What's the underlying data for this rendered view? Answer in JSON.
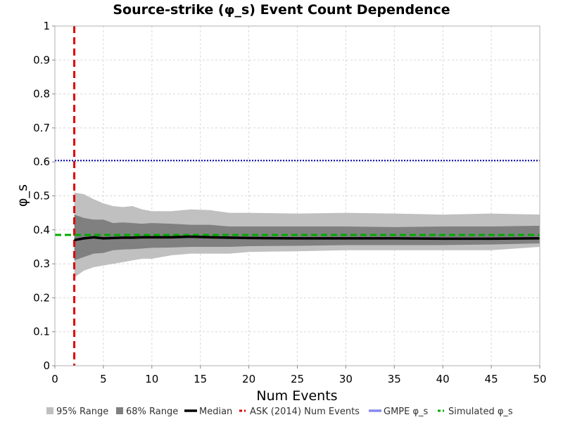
{
  "chart_data": {
    "type": "line",
    "title": "Source-strike (φ_s) Event Count Dependence",
    "xlabel": "Num Events",
    "ylabel": "φ_s",
    "xlim": [
      0,
      50
    ],
    "ylim": [
      0,
      1
    ],
    "x_ticks": [
      0,
      5,
      10,
      15,
      20,
      25,
      30,
      35,
      40,
      45,
      50
    ],
    "y_ticks": [
      0,
      0.1,
      0.2,
      0.3,
      0.4,
      0.5,
      0.6,
      0.7,
      0.8,
      0.9,
      1
    ],
    "grid": true,
    "legend_position": "bottom",
    "x": [
      2,
      3,
      4,
      5,
      6,
      7,
      8,
      9,
      10,
      12,
      14,
      16,
      18,
      20,
      25,
      30,
      35,
      40,
      45,
      50
    ],
    "series": [
      {
        "name": "95% Range",
        "kind": "band",
        "color": "#c0c0c0",
        "lower": [
          0.26,
          0.28,
          0.29,
          0.295,
          0.3,
          0.305,
          0.31,
          0.315,
          0.315,
          0.325,
          0.33,
          0.33,
          0.33,
          0.335,
          0.337,
          0.34,
          0.34,
          0.34,
          0.34,
          0.35
        ],
        "upper": [
          0.51,
          0.505,
          0.49,
          0.478,
          0.47,
          0.467,
          0.47,
          0.46,
          0.455,
          0.455,
          0.46,
          0.458,
          0.45,
          0.45,
          0.448,
          0.45,
          0.448,
          0.445,
          0.448,
          0.445
        ]
      },
      {
        "name": "68% Range",
        "kind": "band",
        "color": "#808080",
        "lower": [
          0.31,
          0.32,
          0.33,
          0.332,
          0.34,
          0.342,
          0.343,
          0.345,
          0.347,
          0.348,
          0.35,
          0.35,
          0.35,
          0.352,
          0.353,
          0.355,
          0.355,
          0.355,
          0.357,
          0.36
        ],
        "upper": [
          0.445,
          0.435,
          0.43,
          0.43,
          0.42,
          0.422,
          0.42,
          0.418,
          0.42,
          0.418,
          0.415,
          0.415,
          0.41,
          0.41,
          0.41,
          0.41,
          0.408,
          0.41,
          0.41,
          0.412
        ]
      },
      {
        "name": "Median",
        "kind": "line",
        "color": "#000000",
        "values": [
          0.37,
          0.375,
          0.378,
          0.375,
          0.376,
          0.377,
          0.377,
          0.378,
          0.378,
          0.378,
          0.38,
          0.378,
          0.377,
          0.376,
          0.375,
          0.375,
          0.375,
          0.374,
          0.374,
          0.375
        ]
      }
    ],
    "reference_lines": [
      {
        "name": "ASK (2014) Num Events",
        "orientation": "vertical",
        "value": 2,
        "color": "#dd0000",
        "style": "dashed"
      },
      {
        "name": "GMPE φ_s",
        "orientation": "horizontal",
        "value": 0.604,
        "color": "#0000aa",
        "style": "dotted"
      },
      {
        "name": "Simulated φ_s",
        "orientation": "horizontal",
        "value": 0.385,
        "color": "#00aa00",
        "style": "dashed"
      }
    ],
    "legend": [
      {
        "label": "95% Range",
        "swatch": "box",
        "color": "#c0c0c0"
      },
      {
        "label": "68% Range",
        "swatch": "box",
        "color": "#808080"
      },
      {
        "label": "Median",
        "swatch": "line",
        "color": "#000000"
      },
      {
        "label": "ASK (2014) Num Events",
        "swatch": "dash",
        "color": "#dd0000"
      },
      {
        "label": "GMPE φ_s",
        "swatch": "line",
        "color": "#8888ee"
      },
      {
        "label": "Simulated φ_s",
        "swatch": "dash",
        "color": "#00aa00"
      }
    ]
  }
}
